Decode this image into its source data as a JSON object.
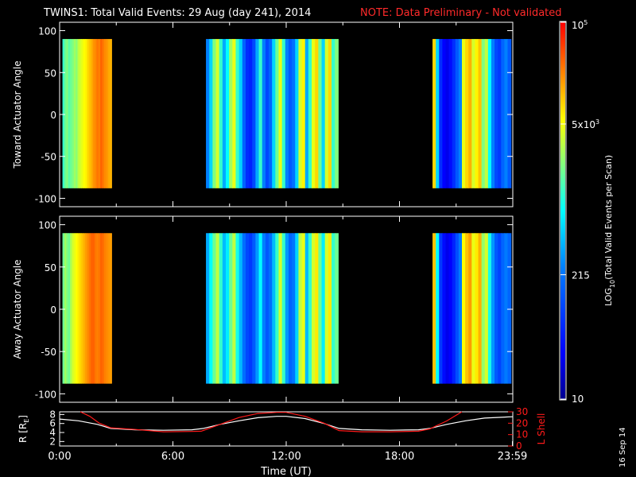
{
  "header": {
    "title": "TWINS1: Total Valid Events: 29 Aug (day 241), 2014",
    "note": "NOTE: Data Preliminary - Not validated",
    "note_color": "#ff2a2a"
  },
  "footer": {
    "date_stamp": "16 Sep 14"
  },
  "chart_data": [
    {
      "type": "heatmap",
      "panel": "top",
      "ylabel": "Toward Actuator Angle",
      "ylim": [
        -110,
        110
      ],
      "yticks": [
        "100",
        "50",
        "0",
        "-50",
        "-100"
      ],
      "xlim": [
        0,
        24
      ],
      "data_extent_y": [
        -88,
        90
      ],
      "segments": [
        {
          "start_hour": 0.15,
          "end_hour": 2.75,
          "profile": [
            0.55,
            0.6,
            0.62,
            0.58,
            0.6,
            0.62,
            0.65,
            0.63,
            0.68,
            0.7,
            0.72,
            0.74,
            0.75,
            0.78,
            0.8,
            0.82,
            0.85,
            0.86,
            0.88,
            0.87,
            0.9,
            0.88,
            0.86,
            0.85,
            0.83,
            0.82
          ]
        },
        {
          "start_hour": 7.75,
          "end_hour": 14.75,
          "profile": [
            0.35,
            0.45,
            0.62,
            0.7,
            0.55,
            0.4,
            0.5,
            0.65,
            0.72,
            0.55,
            0.45,
            0.3,
            0.2,
            0.18,
            0.25,
            0.4,
            0.55,
            0.35,
            0.25,
            0.3,
            0.45,
            0.6,
            0.72,
            0.55,
            0.35,
            0.28,
            0.32,
            0.45,
            0.7,
            0.75,
            0.4,
            0.55,
            0.72,
            0.78,
            0.6,
            0.45,
            0.7,
            0.78,
            0.55,
            0.62
          ]
        },
        {
          "start_hour": 19.75,
          "end_hour": 23.9,
          "profile": [
            0.78,
            0.45,
            0.2,
            0.12,
            0.1,
            0.14,
            0.2,
            0.28,
            0.35,
            0.72,
            0.78,
            0.82,
            0.7,
            0.75,
            0.8,
            0.62,
            0.68,
            0.5,
            0.35,
            0.25,
            0.22,
            0.3,
            0.35,
            0.28
          ]
        }
      ]
    },
    {
      "type": "heatmap",
      "panel": "middle",
      "ylabel": "Away Actuator Angle",
      "ylim": [
        -110,
        110
      ],
      "yticks": [
        "100",
        "50",
        "0",
        "-50",
        "-100"
      ],
      "xlim": [
        0,
        24
      ],
      "data_extent_y": [
        -88,
        90
      ],
      "segments": [
        {
          "start_hour": 0.15,
          "end_hour": 2.75,
          "profile": [
            0.6,
            0.65,
            0.62,
            0.6,
            0.66,
            0.7,
            0.72,
            0.74,
            0.76,
            0.78,
            0.8,
            0.82,
            0.84,
            0.86,
            0.88,
            0.9,
            0.9,
            0.88,
            0.87,
            0.88,
            0.9,
            0.89,
            0.87,
            0.86,
            0.85,
            0.84
          ]
        },
        {
          "start_hour": 7.75,
          "end_hour": 14.75,
          "profile": [
            0.4,
            0.5,
            0.6,
            0.68,
            0.55,
            0.42,
            0.48,
            0.6,
            0.68,
            0.52,
            0.42,
            0.32,
            0.25,
            0.22,
            0.28,
            0.38,
            0.5,
            0.35,
            0.28,
            0.32,
            0.42,
            0.55,
            0.7,
            0.55,
            0.38,
            0.3,
            0.33,
            0.45,
            0.68,
            0.72,
            0.42,
            0.55,
            0.7,
            0.76,
            0.6,
            0.48,
            0.7,
            0.76,
            0.55,
            0.6
          ]
        },
        {
          "start_hour": 19.75,
          "end_hour": 23.9,
          "profile": [
            0.8,
            0.5,
            0.22,
            0.14,
            0.1,
            0.12,
            0.18,
            0.26,
            0.34,
            0.74,
            0.8,
            0.84,
            0.72,
            0.76,
            0.82,
            0.64,
            0.7,
            0.52,
            0.38,
            0.28,
            0.24,
            0.3,
            0.34,
            0.3
          ]
        }
      ]
    },
    {
      "type": "line",
      "panel": "bottom",
      "xlabel": "Time (UT)",
      "ylabel_left": "R [R",
      "ylabel_left_sub": "E",
      "ylabel_left_close": "]",
      "ylabel_right": "L Shell",
      "y_left_ticks": [
        "8",
        "6",
        "4",
        "2"
      ],
      "y_left_range": [
        1,
        8.6
      ],
      "y_right_ticks": [
        "30",
        "20",
        "10",
        "0"
      ],
      "y_right_range": [
        0,
        30
      ],
      "right_axis_color": "#ff1a1a",
      "xticks": [
        {
          "hour": 0,
          "label": "0:00"
        },
        {
          "hour": 6,
          "label": "6:00"
        },
        {
          "hour": 12,
          "label": "12:00"
        },
        {
          "hour": 18,
          "label": "18:00"
        },
        {
          "hour": 23.98,
          "label": "23:59"
        }
      ],
      "series": [
        {
          "color": "#ffffff",
          "x": [
            0,
            1,
            2,
            2.7,
            4,
            5.5,
            7,
            7.6,
            8.5,
            9.5,
            10.5,
            11.5,
            12,
            13,
            14,
            14.8,
            16,
            17.5,
            19,
            19.6,
            20.5,
            21.5,
            22.5,
            23.98
          ],
          "y": [
            7.0,
            6.6,
            5.8,
            4.9,
            4.6,
            4.5,
            4.6,
            4.9,
            5.8,
            6.6,
            7.3,
            7.6,
            7.6,
            7.1,
            6.0,
            4.9,
            4.6,
            4.5,
            4.6,
            4.9,
            5.8,
            6.6,
            7.2,
            7.5
          ]
        },
        {
          "color": "#ff1a1a",
          "x": [
            1.1,
            1.6,
            2.1,
            2.7,
            4,
            5.5,
            7,
            7.5,
            8.5,
            9.5,
            10.5,
            11.5,
            12,
            13,
            14,
            14.8,
            16,
            17.5,
            19,
            19.6,
            20.5,
            21.3
          ],
          "y": [
            30,
            26,
            20,
            16,
            14.5,
            12.5,
            12.8,
            13,
            19,
            25,
            28.5,
            29.5,
            29.5,
            26,
            20,
            13.5,
            12.5,
            12.5,
            13,
            15,
            22,
            30
          ]
        }
      ]
    }
  ],
  "colorbar": {
    "label_main": "LOG",
    "label_sub": "10",
    "label_rest": "(Total Valid Events per Scan)",
    "ticks": [
      {
        "frac": 1.0,
        "base": "10",
        "exp": "5",
        "text": ""
      },
      {
        "frac": 0.73,
        "base": "5x10",
        "exp": "3",
        "text": ""
      },
      {
        "frac": 0.33,
        "base": "",
        "exp": "",
        "text": "215"
      },
      {
        "frac": 0.0,
        "base": "",
        "exp": "",
        "text": "10"
      }
    ]
  }
}
